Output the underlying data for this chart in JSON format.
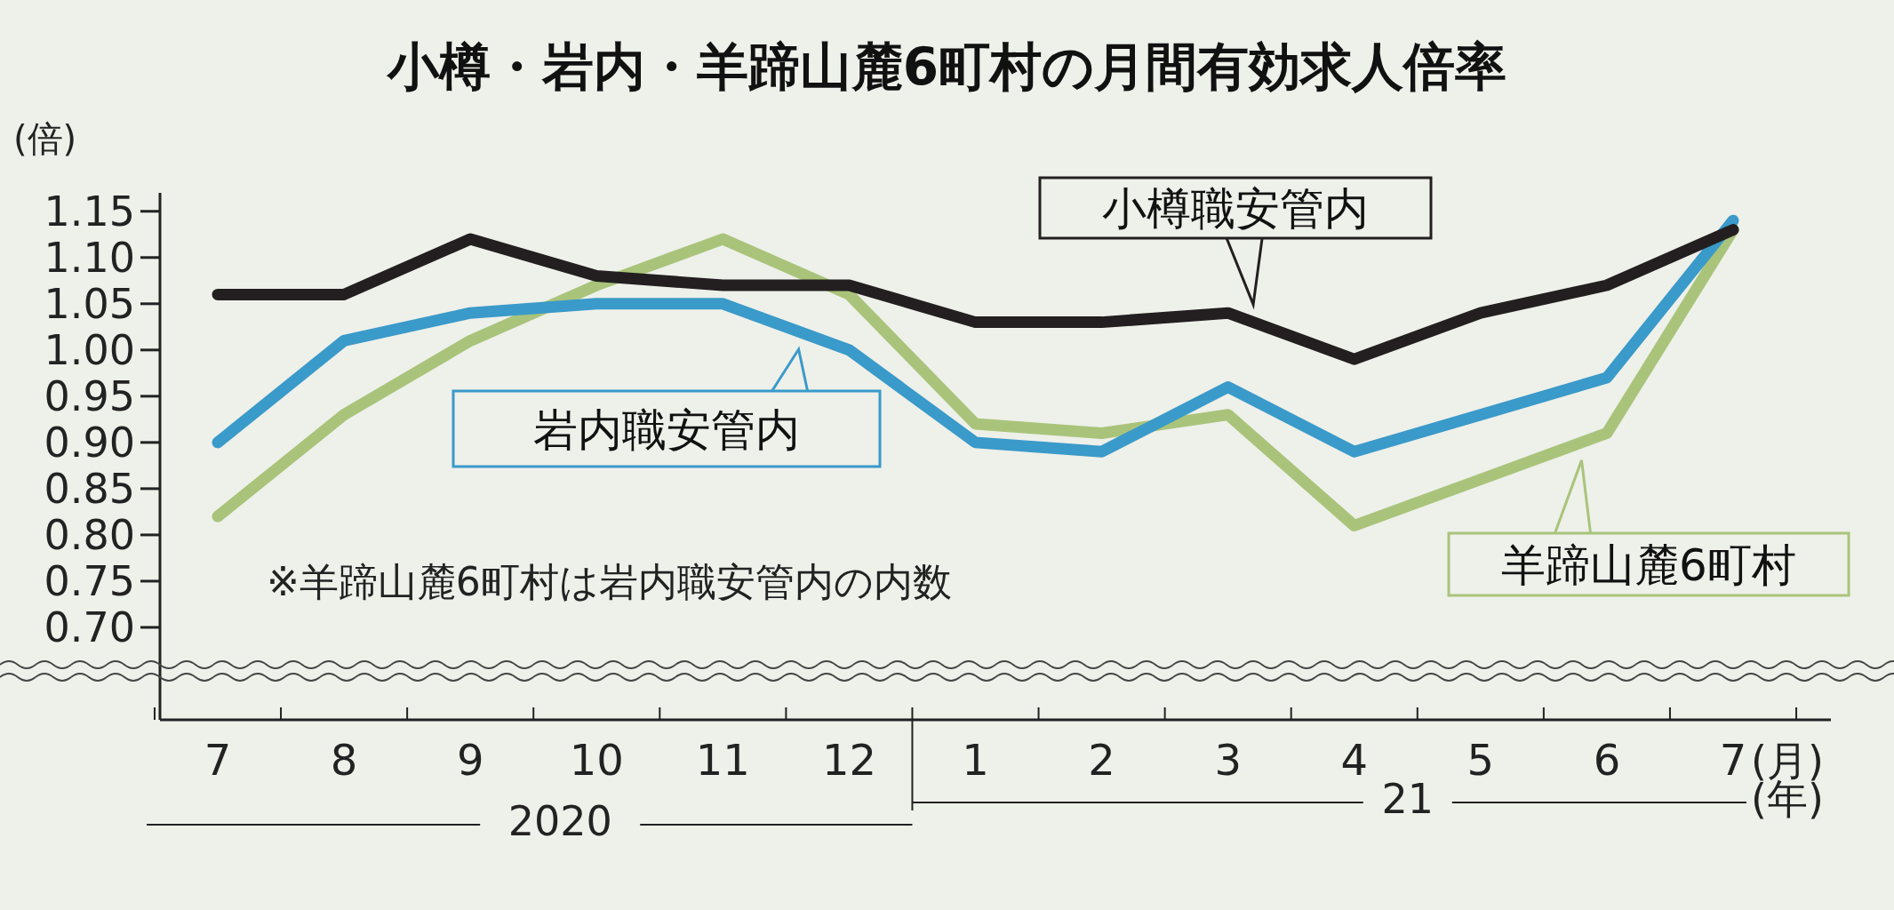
{
  "chart_data": {
    "type": "line",
    "title": "小樽・岩内・羊蹄山麓6町村の月間有効求人倍率",
    "ylabel": "(倍)",
    "xlabel": "(月)",
    "categories": [
      "7",
      "8",
      "9",
      "10",
      "11",
      "12",
      "1",
      "2",
      "3",
      "4",
      "5",
      "6",
      "7"
    ],
    "series": [
      {
        "name": "小樽職安管内",
        "color": "#231f20",
        "values": [
          1.06,
          1.06,
          1.12,
          1.08,
          1.07,
          1.07,
          1.03,
          1.03,
          1.04,
          0.99,
          1.04,
          1.07,
          1.13
        ]
      },
      {
        "name": "岩内職安管内",
        "color": "#3a9ac9",
        "values": [
          0.9,
          1.01,
          1.04,
          1.05,
          1.05,
          1.0,
          0.9,
          0.89,
          0.96,
          0.89,
          0.93,
          0.97,
          1.14
        ]
      },
      {
        "name": "羊蹄山麓6町村",
        "color": "#a9c47a",
        "values": [
          0.82,
          0.93,
          1.01,
          1.07,
          1.12,
          1.06,
          0.92,
          0.91,
          0.93,
          0.81,
          0.86,
          0.91,
          1.13
        ]
      }
    ],
    "ylim": [
      0.6,
      1.17
    ],
    "yticks": [
      {
        "value": 0.7,
        "label": "0.70"
      },
      {
        "value": 0.75,
        "label": "0.75"
      },
      {
        "value": 0.8,
        "label": "0.80"
      },
      {
        "value": 0.85,
        "label": "0.85"
      },
      {
        "value": 0.9,
        "label": "0.90"
      },
      {
        "value": 0.95,
        "label": "0.95"
      },
      {
        "value": 1.0,
        "label": "1.00"
      },
      {
        "value": 1.05,
        "label": "1.05"
      },
      {
        "value": 1.1,
        "label": "1.10"
      },
      {
        "value": 1.15,
        "label": "1.15"
      }
    ],
    "legend": "right",
    "marker": "none",
    "line_style": "solid",
    "annotations": [
      "※羊蹄山麓6町村は岩内職安管内の内数",
      "2020",
      "21",
      "(年)"
    ]
  }
}
